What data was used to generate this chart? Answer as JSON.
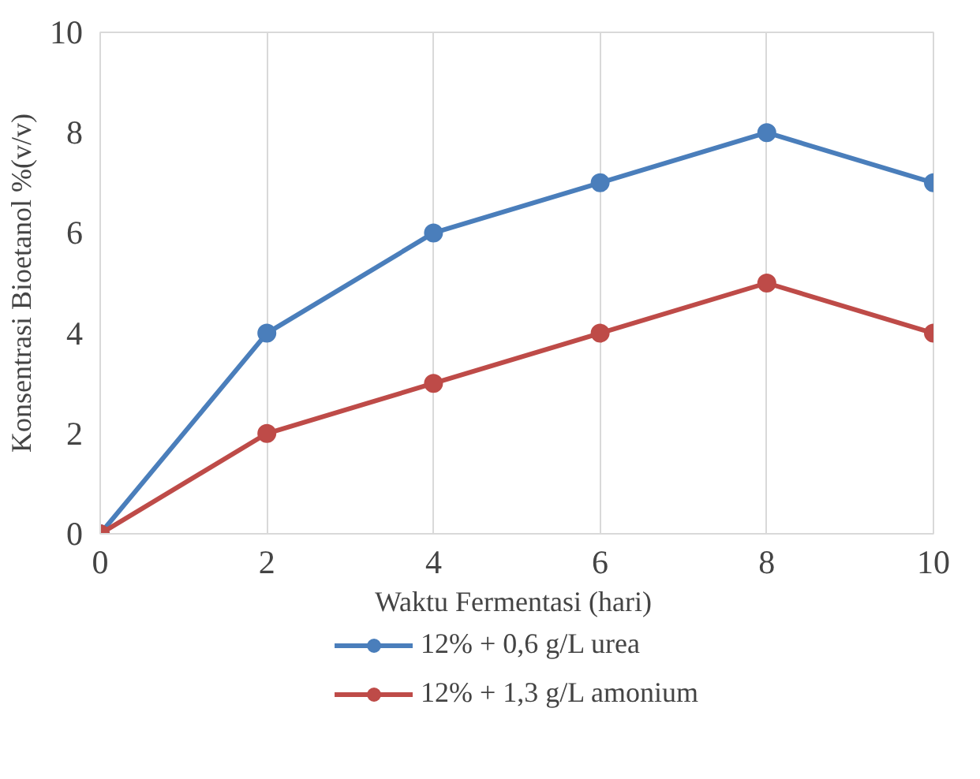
{
  "chart_data": {
    "type": "line",
    "xlabel": "Waktu  Fermentasi (hari)",
    "ylabel": "Konsentrasi Bioetanol %(v/v)",
    "x": [
      0,
      2,
      4,
      6,
      8,
      10
    ],
    "series": [
      {
        "name": "12% + 0,6 g/L urea",
        "color": "#4a7ebb",
        "values": [
          0,
          4,
          6,
          7,
          8,
          7
        ]
      },
      {
        "name": "12% + 1,3 g/L amonium",
        "color": "#be4b48",
        "values": [
          0,
          2,
          3,
          4,
          5,
          4
        ]
      }
    ],
    "xlim": [
      0,
      10
    ],
    "ylim": [
      0,
      10
    ],
    "xticks": [
      0,
      2,
      4,
      6,
      8,
      10
    ],
    "yticks": [
      0,
      2,
      4,
      6,
      8,
      10
    ],
    "grid": "x",
    "legend": "bottom",
    "marker": "circle",
    "line_style": "solid"
  }
}
